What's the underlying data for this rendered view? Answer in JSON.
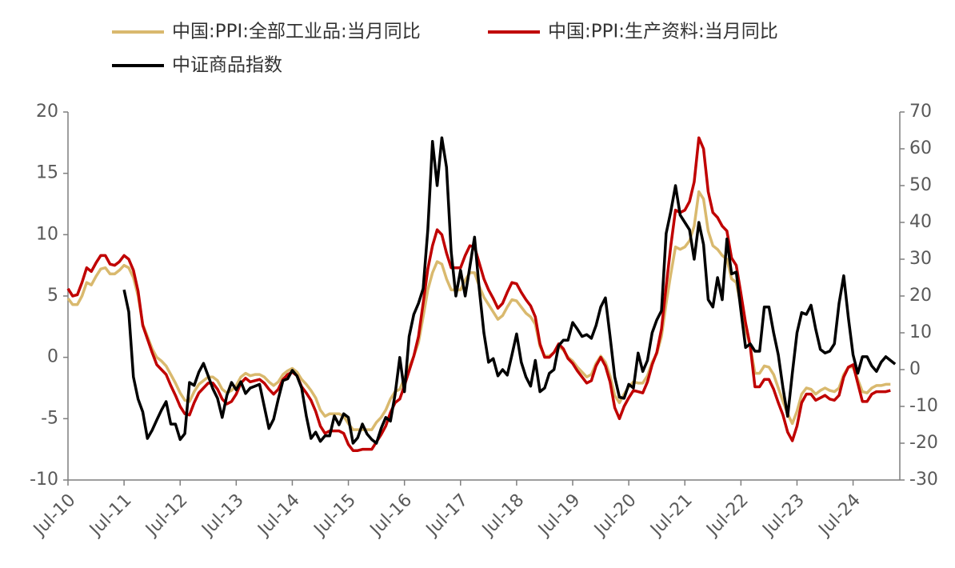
{
  "chart_data": {
    "type": "line",
    "categories": [
      "Jul-10",
      null,
      null,
      null,
      null,
      null,
      null,
      null,
      null,
      null,
      null,
      null,
      "Jul-11",
      null,
      null,
      null,
      null,
      null,
      null,
      null,
      null,
      null,
      null,
      null,
      "Jul-12",
      null,
      null,
      null,
      null,
      null,
      null,
      null,
      null,
      null,
      null,
      null,
      "Jul-13",
      null,
      null,
      null,
      null,
      null,
      null,
      null,
      null,
      null,
      null,
      null,
      "Jul-14",
      null,
      null,
      null,
      null,
      null,
      null,
      null,
      null,
      null,
      null,
      null,
      "Jul-15",
      null,
      null,
      null,
      null,
      null,
      null,
      null,
      null,
      null,
      null,
      null,
      "Jul-16",
      null,
      null,
      null,
      null,
      null,
      null,
      null,
      null,
      null,
      null,
      null,
      "Jul-17",
      null,
      null,
      null,
      null,
      null,
      null,
      null,
      null,
      null,
      null,
      null,
      "Jul-18",
      null,
      null,
      null,
      null,
      null,
      null,
      null,
      null,
      null,
      null,
      null,
      "Jul-19",
      null,
      null,
      null,
      null,
      null,
      null,
      null,
      null,
      null,
      null,
      null,
      "Jul-20",
      null,
      null,
      null,
      null,
      null,
      null,
      null,
      null,
      null,
      null,
      null,
      "Jul-21",
      null,
      null,
      null,
      null,
      null,
      null,
      null,
      null,
      null,
      null,
      null,
      "Jul-22",
      null,
      null,
      null,
      null,
      null,
      null,
      null,
      null,
      null,
      null,
      null,
      "Jul-23",
      null,
      null,
      null,
      null,
      null,
      null,
      null,
      null,
      null,
      null,
      null,
      "Jul-24",
      null,
      null,
      null,
      null,
      null,
      null,
      null,
      null,
      null
    ],
    "series": [
      {
        "name": "中国:PPI:全部工业品:当月同比",
        "color": "#D9B96E",
        "values": [
          4.8,
          4.3,
          4.3,
          5.0,
          6.1,
          5.9,
          6.6,
          7.2,
          7.3,
          6.8,
          6.8,
          7.1,
          7.5,
          7.3,
          6.5,
          5.0,
          2.7,
          1.7,
          0.7,
          0.0,
          -0.3,
          -0.7,
          -1.4,
          -2.1,
          -2.9,
          -3.5,
          -3.6,
          -2.8,
          -2.2,
          -1.9,
          -1.6,
          -1.6,
          -1.9,
          -2.6,
          -2.9,
          -2.7,
          -2.3,
          -1.6,
          -1.3,
          -1.5,
          -1.4,
          -1.4,
          -1.6,
          -2.0,
          -2.3,
          -2.0,
          -1.4,
          -1.1,
          -0.9,
          -1.2,
          -1.8,
          -2.2,
          -2.7,
          -3.3,
          -4.3,
          -4.8,
          -4.6,
          -4.6,
          -4.6,
          -4.8,
          -5.4,
          -5.9,
          -5.9,
          -5.9,
          -5.9,
          -5.9,
          -5.3,
          -4.9,
          -4.3,
          -3.4,
          -2.8,
          -2.6,
          -1.7,
          -0.8,
          0.1,
          1.2,
          3.3,
          5.5,
          6.9,
          7.8,
          7.6,
          6.4,
          5.5,
          5.5,
          5.5,
          6.3,
          6.9,
          6.9,
          5.8,
          4.9,
          4.3,
          3.7,
          3.1,
          3.4,
          4.1,
          4.7,
          4.6,
          4.1,
          3.6,
          3.3,
          2.7,
          0.9,
          0.1,
          0.1,
          0.4,
          0.9,
          0.6,
          0.0,
          -0.3,
          -0.8,
          -1.2,
          -1.6,
          -1.4,
          -0.5,
          0.1,
          -0.4,
          -1.5,
          -3.1,
          -3.7,
          -3.0,
          -2.4,
          -2.0,
          -2.1,
          -2.1,
          -1.5,
          -0.4,
          0.3,
          1.7,
          4.4,
          6.8,
          9.0,
          8.8,
          9.0,
          9.5,
          10.7,
          13.5,
          12.9,
          10.3,
          9.1,
          8.8,
          8.3,
          8.0,
          6.4,
          6.1,
          4.2,
          2.3,
          0.9,
          -1.3,
          -1.3,
          -0.7,
          -0.8,
          -1.4,
          -2.5,
          -3.6,
          -4.6,
          -5.4,
          -4.4,
          -3.0,
          -2.5,
          -2.6,
          -3.0,
          -2.7,
          -2.5,
          -2.7,
          -2.8,
          -2.5,
          -1.4,
          -0.8,
          -0.8,
          -1.8,
          -2.8,
          -2.9,
          -2.5,
          -2.3,
          -2.3,
          -2.2,
          -2.2,
          null
        ]
      },
      {
        "name": "中国:PPI:生产资料:当月同比",
        "color": "#C00000",
        "values": [
          5.6,
          5.0,
          5.1,
          6.1,
          7.3,
          7.0,
          7.7,
          8.3,
          8.3,
          7.6,
          7.5,
          7.8,
          8.3,
          8.0,
          7.1,
          5.4,
          2.6,
          1.5,
          0.4,
          -0.6,
          -1.0,
          -1.4,
          -2.3,
          -3.1,
          -4.0,
          -4.6,
          -4.7,
          -3.7,
          -2.9,
          -2.5,
          -2.1,
          -2.1,
          -2.6,
          -3.4,
          -3.8,
          -3.6,
          -3.0,
          -2.1,
          -1.7,
          -2.0,
          -1.9,
          -1.8,
          -2.1,
          -2.6,
          -3.0,
          -2.6,
          -1.8,
          -1.4,
          -1.2,
          -1.5,
          -2.4,
          -2.9,
          -3.5,
          -4.4,
          -5.6,
          -6.2,
          -6.0,
          -6.0,
          -6.0,
          -6.2,
          -7.1,
          -7.6,
          -7.6,
          -7.5,
          -7.5,
          -7.5,
          -6.9,
          -6.3,
          -5.6,
          -4.5,
          -3.7,
          -3.4,
          -2.3,
          -1.1,
          0.1,
          1.7,
          4.4,
          7.2,
          9.1,
          10.4,
          10.0,
          8.5,
          7.3,
          7.3,
          7.3,
          8.3,
          9.1,
          9.0,
          7.7,
          6.4,
          5.5,
          4.8,
          4.0,
          4.4,
          5.3,
          6.1,
          6.0,
          5.3,
          4.7,
          4.2,
          3.3,
          1.1,
          0.0,
          0.0,
          0.4,
          1.1,
          0.7,
          -0.1,
          -0.5,
          -1.1,
          -1.6,
          -2.1,
          -1.9,
          -0.7,
          0.0,
          -0.7,
          -2.0,
          -4.1,
          -5.0,
          -4.0,
          -3.3,
          -2.7,
          -2.8,
          -2.9,
          -2.0,
          -0.6,
          0.4,
          2.3,
          5.8,
          9.1,
          12.0,
          11.8,
          12.0,
          12.7,
          14.3,
          17.9,
          17.0,
          13.5,
          11.8,
          11.4,
          10.7,
          10.3,
          8.1,
          7.5,
          5.2,
          2.8,
          0.9,
          -2.4,
          -2.4,
          -1.8,
          -1.8,
          -2.6,
          -3.7,
          -4.7,
          -6.1,
          -6.8,
          -5.6,
          -3.7,
          -3.0,
          -3.0,
          -3.5,
          -3.3,
          -3.1,
          -3.4,
          -3.5,
          -3.1,
          -1.6,
          -0.8,
          -0.6,
          -2.1,
          -3.6,
          -3.6,
          -3.0,
          -2.8,
          -2.8,
          -2.8,
          -2.7,
          null
        ]
      },
      {
        "name": "中证商品指数",
        "color": "#000000",
        "axis": "y2",
        "values": [
          null,
          null,
          null,
          null,
          null,
          null,
          null,
          null,
          null,
          null,
          null,
          null,
          21.7,
          15.7,
          -2,
          -8,
          -11.5,
          -18.7,
          -16.5,
          -13.7,
          -11,
          -8.7,
          -14.8,
          -14.8,
          -19,
          -17.4,
          -3.5,
          -4.3,
          -0.7,
          1.7,
          -1.7,
          -5.2,
          -7.8,
          -13,
          -7,
          -3.5,
          -5.5,
          -3.3,
          -6.5,
          -5,
          -4.5,
          -4,
          -10,
          -16,
          -13.5,
          -8,
          -3,
          -2.5,
          -0.2,
          -1.7,
          -5,
          -12.6,
          -18.7,
          -17,
          -19.5,
          -18,
          -18,
          -12.6,
          -15,
          -12,
          -13,
          -20,
          -18.5,
          -14.8,
          -17.5,
          -19,
          -20,
          -16,
          -13,
          -14,
          -6.7,
          3.3,
          -6,
          9,
          15,
          18,
          22,
          38,
          62,
          50,
          63,
          55,
          32,
          20,
          27,
          20,
          28,
          36,
          22,
          10,
          2,
          3,
          -1.7,
          0,
          -1.5,
          4,
          9.7,
          2,
          -2,
          -4.5,
          2.5,
          -6,
          -5,
          -1,
          0,
          6.5,
          8,
          8,
          12.8,
          11,
          9,
          9.5,
          8.5,
          12,
          17,
          19.5,
          9,
          -2,
          -7.5,
          -7.8,
          -4,
          -5,
          4.5,
          -0.5,
          2.5,
          10,
          13.5,
          16,
          37,
          43,
          50,
          42,
          40,
          38,
          30,
          40,
          34,
          19,
          17,
          25,
          19,
          35.5,
          26,
          26.5,
          16,
          6,
          7,
          5,
          5,
          17,
          17,
          10,
          4,
          -5,
          -12.7,
          -1,
          10,
          15.5,
          15,
          17.5,
          11,
          5.5,
          4.5,
          5,
          7,
          18,
          25.5,
          14,
          4,
          -1,
          3.5,
          3.5,
          1,
          -0.5,
          2,
          3.5,
          2.5,
          1.5
        ]
      }
    ],
    "ylim": [
      -10,
      20
    ],
    "yticks": [
      -10,
      -5,
      0,
      5,
      10,
      15,
      20
    ],
    "y2lim": [
      -30,
      70
    ],
    "y2ticks": [
      -30,
      -20,
      -10,
      0,
      10,
      20,
      30,
      40,
      50,
      60,
      70
    ],
    "grid": false
  }
}
